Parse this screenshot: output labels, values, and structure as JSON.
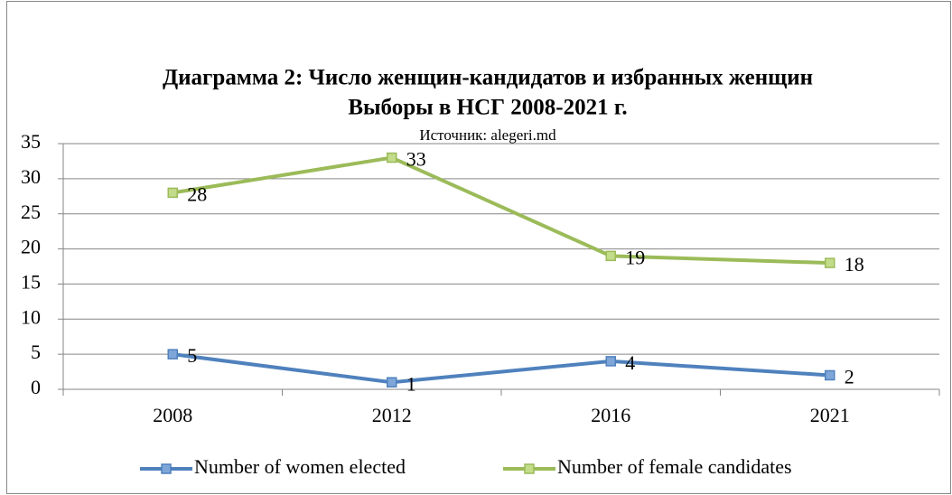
{
  "chart_data": {
    "type": "line",
    "title": [
      "Диаграмма 2: Число женщин-кандидатов и избранных женщин",
      "Выборы в НСГ 2008-2021 г."
    ],
    "subtitle": "Источник: alegeri.md",
    "categories": [
      "2008",
      "2012",
      "2016",
      "2021"
    ],
    "series": [
      {
        "name": "Number of women elected",
        "color": "#4f81bd",
        "values": [
          5,
          1,
          4,
          2
        ]
      },
      {
        "name": "Number of female candidates",
        "color": "#9bbb59",
        "values": [
          28,
          33,
          19,
          18
        ]
      }
    ],
    "ylim": [
      0,
      35
    ],
    "yticks": [
      0,
      5,
      10,
      15,
      20,
      25,
      30,
      35
    ],
    "grid": true,
    "legend": "bottom"
  }
}
